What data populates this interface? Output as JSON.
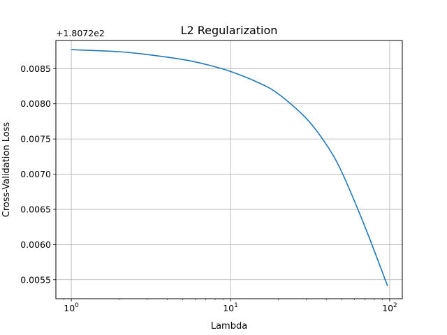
{
  "chart_data": {
    "type": "line",
    "title": "L2 Regularization",
    "xlabel": "Lambda",
    "ylabel": "Cross-Validation Loss",
    "y_offset_label": "+1.8072e2",
    "x_scale": "log",
    "xlim": [
      0.8,
      120
    ],
    "ylim": [
      0.00523,
      0.0089
    ],
    "x_ticks": [
      {
        "value": 1,
        "base": "10",
        "exp": "0"
      },
      {
        "value": 10,
        "base": "10",
        "exp": "1"
      },
      {
        "value": 100,
        "base": "10",
        "exp": "2"
      }
    ],
    "y_ticks": [
      "0.0055",
      "0.0060",
      "0.0065",
      "0.0070",
      "0.0075",
      "0.0080",
      "0.0085"
    ],
    "y_tick_values": [
      0.0055,
      0.006,
      0.0065,
      0.007,
      0.0075,
      0.008,
      0.0085
    ],
    "grid": true,
    "series": [
      {
        "color": "#1f77b4",
        "x": [
          1,
          2,
          3,
          5,
          7,
          10,
          15,
          20,
          30,
          40,
          50,
          70,
          97
        ],
        "y": [
          0.00877,
          0.00874,
          0.0087,
          0.00863,
          0.00856,
          0.00846,
          0.0083,
          0.00814,
          0.00779,
          0.00742,
          0.00703,
          0.00625,
          0.00541
        ]
      }
    ]
  }
}
